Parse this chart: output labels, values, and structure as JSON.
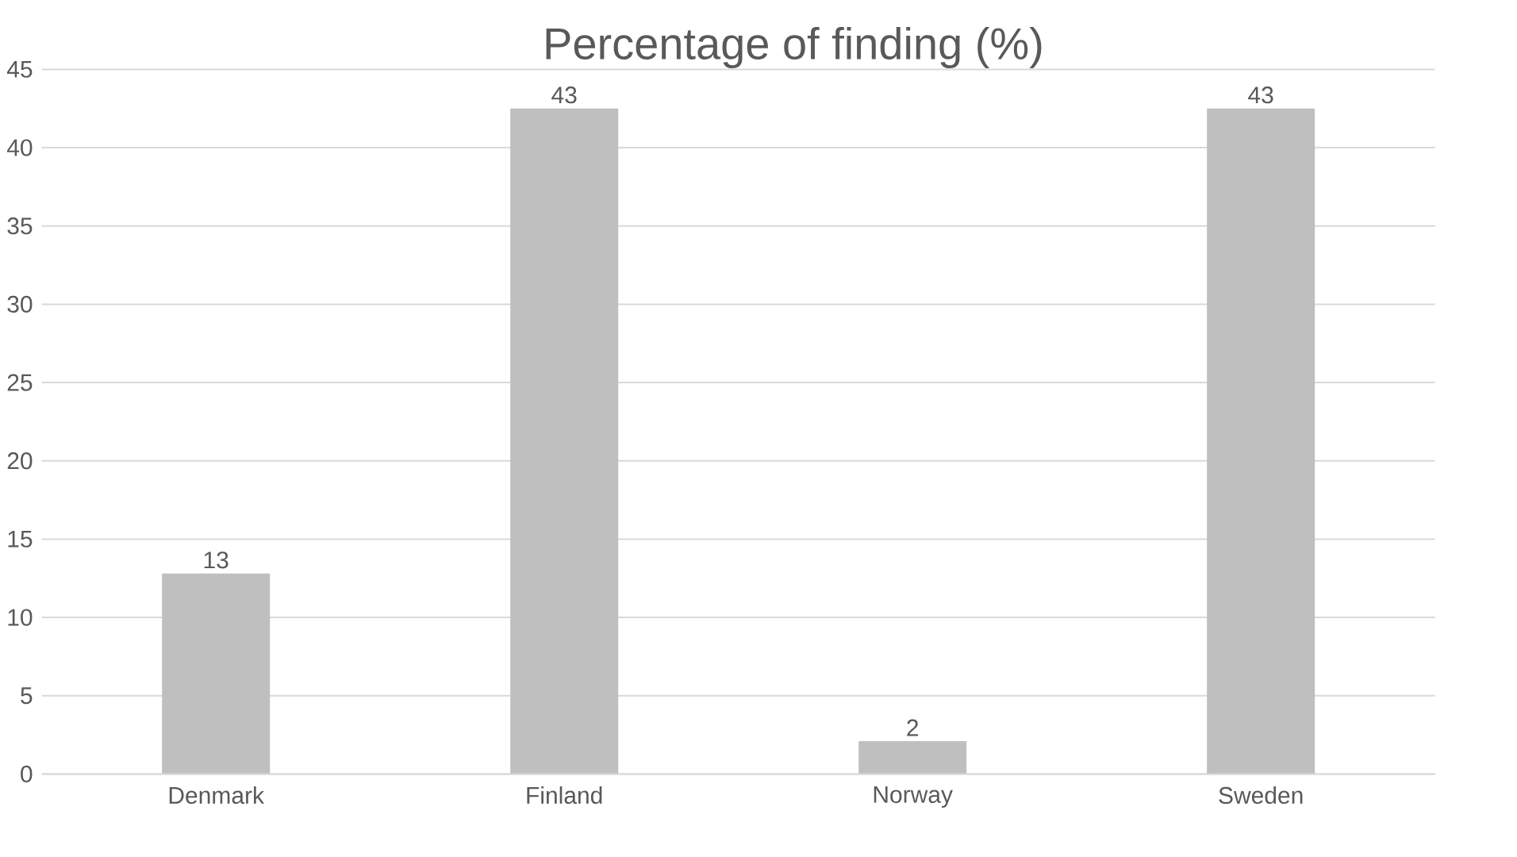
{
  "chart_data": {
    "type": "bar",
    "title": "Percentage of finding (%)",
    "categories": [
      "Denmark",
      "Finland",
      "Norway",
      "Sweden"
    ],
    "values": [
      12.8,
      42.5,
      2.1,
      42.5
    ],
    "value_labels": [
      "13",
      "43",
      "2",
      "43"
    ],
    "color": "#bfbfbf",
    "ylim": [
      0,
      45
    ],
    "yticks": [
      0,
      5,
      10,
      15,
      20,
      25,
      30,
      35,
      40,
      45
    ],
    "grid": "y"
  }
}
